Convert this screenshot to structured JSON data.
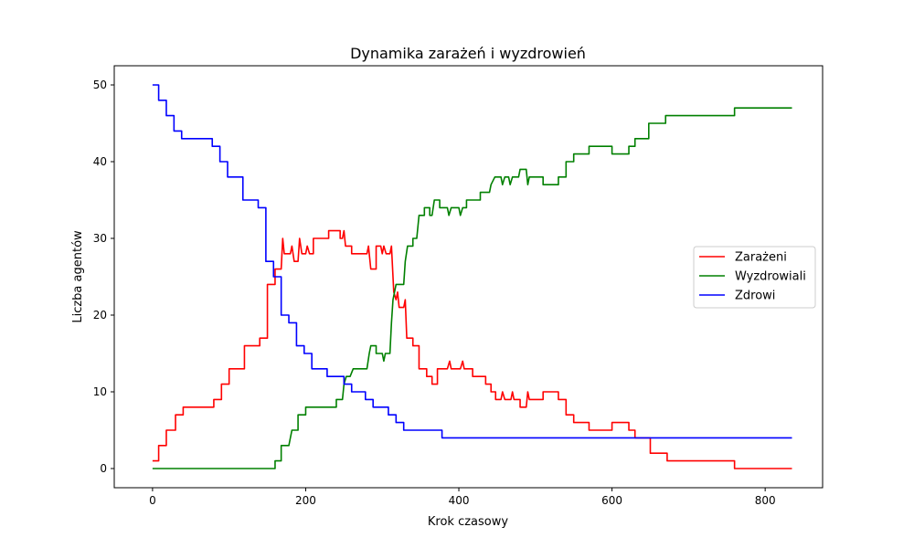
{
  "chart_data": {
    "type": "line",
    "title": "Dynamika zarażeń i wyzdrowień",
    "xlabel": "Krok czasowy",
    "ylabel": "Liczba agentów",
    "xlim": [
      -50,
      875
    ],
    "ylim": [
      -2.5,
      52.5
    ],
    "xticks": [
      0,
      200,
      400,
      600,
      800
    ],
    "yticks": [
      0,
      10,
      20,
      30,
      40,
      50
    ],
    "grid": false,
    "legend_position": "center-right",
    "series": [
      {
        "name": "Zarażeni",
        "color": "#ff0000",
        "points": [
          [
            0,
            1
          ],
          [
            8,
            1
          ],
          [
            8,
            3
          ],
          [
            18,
            3
          ],
          [
            18,
            5
          ],
          [
            30,
            5
          ],
          [
            30,
            7
          ],
          [
            40,
            7
          ],
          [
            40,
            8
          ],
          [
            80,
            8
          ],
          [
            80,
            9
          ],
          [
            90,
            9
          ],
          [
            90,
            11
          ],
          [
            100,
            11
          ],
          [
            100,
            13
          ],
          [
            120,
            13
          ],
          [
            120,
            16
          ],
          [
            140,
            16
          ],
          [
            140,
            17
          ],
          [
            150,
            17
          ],
          [
            150,
            24
          ],
          [
            160,
            24
          ],
          [
            160,
            26
          ],
          [
            168,
            26
          ],
          [
            170,
            30
          ],
          [
            172,
            28
          ],
          [
            180,
            28
          ],
          [
            182,
            29
          ],
          [
            185,
            27
          ],
          [
            190,
            27
          ],
          [
            192,
            30
          ],
          [
            195,
            28
          ],
          [
            200,
            28
          ],
          [
            202,
            29
          ],
          [
            205,
            28
          ],
          [
            210,
            28
          ],
          [
            210,
            30
          ],
          [
            230,
            30
          ],
          [
            230,
            31
          ],
          [
            245,
            31
          ],
          [
            245,
            30
          ],
          [
            248,
            30
          ],
          [
            250,
            31
          ],
          [
            252,
            29
          ],
          [
            260,
            29
          ],
          [
            260,
            28
          ],
          [
            280,
            28
          ],
          [
            282,
            29
          ],
          [
            285,
            26
          ],
          [
            292,
            26
          ],
          [
            292,
            29
          ],
          [
            298,
            29
          ],
          [
            300,
            28
          ],
          [
            302,
            29
          ],
          [
            305,
            28
          ],
          [
            310,
            28
          ],
          [
            312,
            29
          ],
          [
            315,
            23
          ],
          [
            318,
            22
          ],
          [
            320,
            23
          ],
          [
            322,
            21
          ],
          [
            328,
            21
          ],
          [
            330,
            22
          ],
          [
            332,
            17
          ],
          [
            340,
            17
          ],
          [
            340,
            16
          ],
          [
            348,
            16
          ],
          [
            348,
            13
          ],
          [
            358,
            13
          ],
          [
            358,
            12
          ],
          [
            365,
            12
          ],
          [
            365,
            11
          ],
          [
            372,
            11
          ],
          [
            372,
            13
          ],
          [
            380,
            13
          ],
          [
            385,
            13
          ],
          [
            388,
            14
          ],
          [
            390,
            13
          ],
          [
            400,
            13
          ],
          [
            402,
            13
          ],
          [
            405,
            14
          ],
          [
            407,
            13
          ],
          [
            418,
            13
          ],
          [
            418,
            12
          ],
          [
            435,
            12
          ],
          [
            435,
            11
          ],
          [
            442,
            11
          ],
          [
            442,
            10
          ],
          [
            448,
            10
          ],
          [
            448,
            9
          ],
          [
            455,
            9
          ],
          [
            457,
            10
          ],
          [
            460,
            9
          ],
          [
            468,
            9
          ],
          [
            470,
            10
          ],
          [
            472,
            9
          ],
          [
            480,
            9
          ],
          [
            480,
            8
          ],
          [
            488,
            8
          ],
          [
            490,
            10
          ],
          [
            492,
            9
          ],
          [
            510,
            9
          ],
          [
            510,
            10
          ],
          [
            530,
            10
          ],
          [
            530,
            9
          ],
          [
            540,
            9
          ],
          [
            540,
            7
          ],
          [
            550,
            7
          ],
          [
            550,
            6
          ],
          [
            570,
            6
          ],
          [
            570,
            5
          ],
          [
            600,
            5
          ],
          [
            600,
            6
          ],
          [
            622,
            6
          ],
          [
            622,
            5
          ],
          [
            630,
            5
          ],
          [
            630,
            4
          ],
          [
            650,
            4
          ],
          [
            650,
            2
          ],
          [
            672,
            2
          ],
          [
            672,
            1
          ],
          [
            760,
            1
          ],
          [
            760,
            0
          ],
          [
            835,
            0
          ]
        ]
      },
      {
        "name": "Wyzdrowiali",
        "color": "#008000",
        "points": [
          [
            0,
            0
          ],
          [
            160,
            0
          ],
          [
            160,
            1
          ],
          [
            168,
            1
          ],
          [
            168,
            3
          ],
          [
            178,
            3
          ],
          [
            180,
            4
          ],
          [
            182,
            5
          ],
          [
            190,
            5
          ],
          [
            190,
            7
          ],
          [
            200,
            7
          ],
          [
            200,
            8
          ],
          [
            240,
            8
          ],
          [
            240,
            9
          ],
          [
            248,
            9
          ],
          [
            250,
            11
          ],
          [
            253,
            12
          ],
          [
            258,
            12
          ],
          [
            262,
            13
          ],
          [
            280,
            13
          ],
          [
            283,
            15
          ],
          [
            285,
            16
          ],
          [
            292,
            16
          ],
          [
            292,
            15
          ],
          [
            300,
            15
          ],
          [
            302,
            14
          ],
          [
            304,
            15
          ],
          [
            310,
            15
          ],
          [
            312,
            19
          ],
          [
            314,
            22
          ],
          [
            318,
            24
          ],
          [
            328,
            24
          ],
          [
            330,
            27
          ],
          [
            333,
            29
          ],
          [
            340,
            29
          ],
          [
            340,
            30
          ],
          [
            345,
            30
          ],
          [
            348,
            33
          ],
          [
            355,
            33
          ],
          [
            355,
            34
          ],
          [
            362,
            34
          ],
          [
            362,
            33
          ],
          [
            365,
            33
          ],
          [
            368,
            35
          ],
          [
            375,
            35
          ],
          [
            375,
            34
          ],
          [
            385,
            34
          ],
          [
            387,
            33
          ],
          [
            390,
            34
          ],
          [
            400,
            34
          ],
          [
            402,
            33
          ],
          [
            405,
            34
          ],
          [
            410,
            34
          ],
          [
            410,
            35
          ],
          [
            428,
            35
          ],
          [
            428,
            36
          ],
          [
            440,
            36
          ],
          [
            442,
            37
          ],
          [
            447,
            38
          ],
          [
            455,
            38
          ],
          [
            457,
            37
          ],
          [
            460,
            38
          ],
          [
            465,
            38
          ],
          [
            467,
            37
          ],
          [
            470,
            38
          ],
          [
            478,
            38
          ],
          [
            480,
            39
          ],
          [
            488,
            39
          ],
          [
            490,
            37
          ],
          [
            492,
            38
          ],
          [
            510,
            38
          ],
          [
            510,
            37
          ],
          [
            530,
            37
          ],
          [
            530,
            38
          ],
          [
            540,
            38
          ],
          [
            540,
            40
          ],
          [
            550,
            40
          ],
          [
            550,
            41
          ],
          [
            570,
            41
          ],
          [
            570,
            42
          ],
          [
            600,
            42
          ],
          [
            600,
            41
          ],
          [
            622,
            41
          ],
          [
            622,
            42
          ],
          [
            630,
            42
          ],
          [
            630,
            43
          ],
          [
            648,
            43
          ],
          [
            648,
            45
          ],
          [
            670,
            45
          ],
          [
            670,
            46
          ],
          [
            760,
            46
          ],
          [
            760,
            47
          ],
          [
            835,
            47
          ]
        ]
      },
      {
        "name": "Zdrowi",
        "color": "#0000ff",
        "points": [
          [
            0,
            50
          ],
          [
            8,
            50
          ],
          [
            8,
            48
          ],
          [
            18,
            48
          ],
          [
            18,
            46
          ],
          [
            28,
            46
          ],
          [
            28,
            44
          ],
          [
            38,
            44
          ],
          [
            38,
            43
          ],
          [
            78,
            43
          ],
          [
            78,
            42
          ],
          [
            88,
            42
          ],
          [
            88,
            40
          ],
          [
            98,
            40
          ],
          [
            98,
            38
          ],
          [
            118,
            38
          ],
          [
            118,
            35
          ],
          [
            138,
            35
          ],
          [
            138,
            34
          ],
          [
            148,
            34
          ],
          [
            148,
            27
          ],
          [
            158,
            27
          ],
          [
            158,
            25
          ],
          [
            168,
            25
          ],
          [
            168,
            20
          ],
          [
            178,
            20
          ],
          [
            178,
            19
          ],
          [
            188,
            19
          ],
          [
            188,
            16
          ],
          [
            198,
            16
          ],
          [
            198,
            15
          ],
          [
            208,
            15
          ],
          [
            208,
            13
          ],
          [
            228,
            13
          ],
          [
            228,
            12
          ],
          [
            250,
            12
          ],
          [
            250,
            11
          ],
          [
            260,
            11
          ],
          [
            260,
            10
          ],
          [
            278,
            10
          ],
          [
            278,
            9
          ],
          [
            288,
            9
          ],
          [
            288,
            8
          ],
          [
            308,
            8
          ],
          [
            308,
            7
          ],
          [
            318,
            7
          ],
          [
            318,
            6
          ],
          [
            328,
            6
          ],
          [
            328,
            5
          ],
          [
            378,
            5
          ],
          [
            378,
            4
          ],
          [
            835,
            4
          ]
        ]
      }
    ]
  }
}
